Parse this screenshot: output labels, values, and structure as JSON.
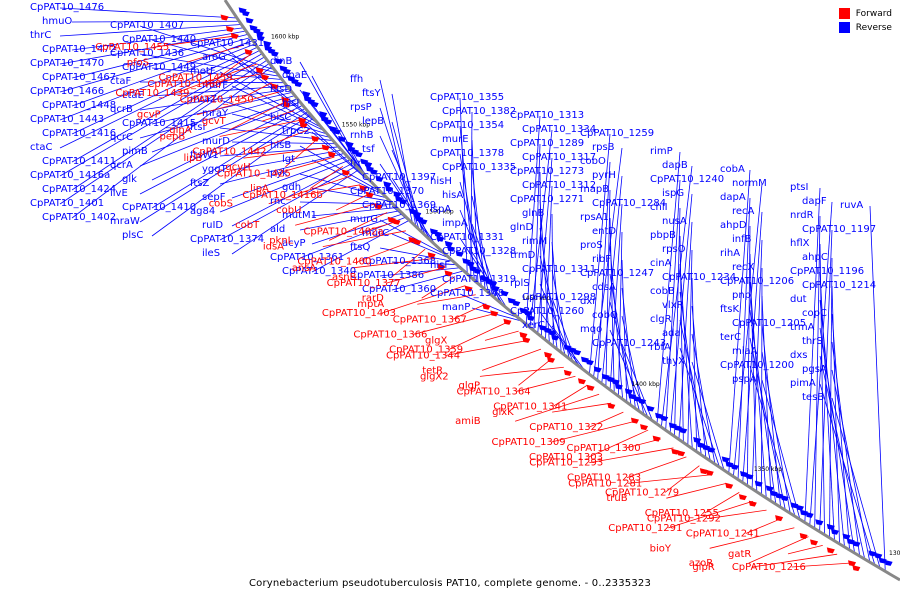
{
  "caption": "Corynebacterium pseudotuberculosis PAT10, complete genome. - 0..2335323",
  "legend": [
    {
      "label": "Forward",
      "color": "#ff0000"
    },
    {
      "label": "Reverse",
      "color": "#0000ff"
    }
  ],
  "colors": {
    "forward": "#ff0000",
    "reverse": "#0000ff",
    "backbone": "#888888"
  },
  "ticks": [
    "1600 kbp",
    "1550 kbp",
    "1500 kbp",
    "1450 kbp",
    "1400 kbp",
    "1350 kbp",
    "1300 kbp"
  ],
  "reverse_labels": [
    "CpPAT10_1476",
    "hmuO",
    "thrC",
    "CpPAT10_1472",
    "CpPAT10_1470",
    "CpPAT10_1467",
    "CpPAT10_1466",
    "CpPAT10_1448",
    "CpPAT10_1443",
    "CpPAT10_1416",
    "ctaC",
    "CpPAT10_1411",
    "CpPAT10_1416a",
    "CpPAT10_1424",
    "CpPAT10_1401",
    "CpPAT10_1402",
    "CpPAT10_1407",
    "CpPAT10_1440",
    "CpPAT10_1436",
    "CpPAT10_1449",
    "ctaF",
    "ctaE",
    "qcrB",
    "CpPAT10_1415",
    "qcrC",
    "pimB",
    "qcrA",
    "glk",
    "ilvE",
    "CpPAT10_1410",
    "mraW",
    "plsC",
    "CpPAT10_1431",
    "aroG",
    "metF",
    "murF",
    "mraZ",
    "mraY",
    "ftsI",
    "murD",
    "ftsW1",
    "yggT",
    "ftsZ",
    "sepF",
    "ag84",
    "ruID",
    "CpPAT10_1374",
    "ileS",
    "dinB",
    "dnaE",
    "hisD",
    "hisI",
    "hisC",
    "trpC2",
    "hisB",
    "lgt",
    "pyk",
    "gdh",
    "rnc",
    "mutM1",
    "ald",
    "acyP",
    "CpPAT10_1361",
    "CpPAT10_1340",
    "ffh",
    "ftsY",
    "rpsP",
    "lepB",
    "rnhB",
    "tsf",
    "frr",
    "CpPAT10_1397",
    "CpPAT10_1370",
    "CpPAT10_1369",
    "murG",
    "murC",
    "ftsQ",
    "CpPAT10_1368",
    "CpPAT10_1386",
    "CpPAT10_1360",
    "CpPAT10_1355",
    "CpPAT10_1382",
    "CpPAT10_1354",
    "murE",
    "CpPAT10_1378",
    "CpPAT10_1335",
    "hisH",
    "hisA",
    "lspA",
    "impA",
    "CpPAT10_1331",
    "CpPAT10_1328",
    "hisF",
    "CpPAT10_1319",
    "CpPAT10_1348",
    "manP",
    "CpPAT10_1313",
    "CpPAT10_1334",
    "CpPAT10_1289",
    "CpPAT10_1317",
    "CpPAT10_1273",
    "CpPAT10_1312",
    "CpPAT10_1271",
    "glnB",
    "glnD",
    "rimM",
    "trmD",
    "CpPAT10_1311",
    "rplS",
    "CpPAT10_1298",
    "CpPAT10_1260",
    "xerC",
    "CpPAT10_1259",
    "rpsB",
    "cobO",
    "pyrH",
    "mapB",
    "CpPAT10_1284",
    "rpsA1",
    "entD",
    "proS",
    "ribF",
    "CpPAT10_1247",
    "cdsA",
    "dxr",
    "cobQ",
    "mqo",
    "CpPAT10_1243",
    "rimP",
    "dapB",
    "CpPAT10_1240",
    "ispG",
    "chlI",
    "nusA",
    "pbpB",
    "rpsO",
    "cinA",
    "CpPAT10_1234",
    "cobB",
    "vlxR",
    "clgR",
    "ada",
    "rbfA",
    "thyX",
    "cobA",
    "normM",
    "dapA",
    "recA",
    "ahpD",
    "infB",
    "rihA",
    "recX",
    "CpPAT10_1206",
    "pnp",
    "ftsK",
    "CpPAT10_1205",
    "terC",
    "miaA",
    "CpPAT10_1200",
    "pspA",
    "ptsI",
    "dapF",
    "nrdR",
    "CpPAT10_1197",
    "hflX",
    "ahpC",
    "CpPAT10_1196",
    "CpPAT10_1214",
    "dut",
    "copC",
    "trmA",
    "thrS",
    "dxs",
    "pgsA",
    "pimA",
    "tesB",
    "ruvA"
  ],
  "forward_labels": [
    "CpPAT10_1455",
    "pfoS",
    "CpPAT10_1459",
    "CpPAT10_1439",
    "CpPAT10_1460",
    "CpPAT10_1450",
    "gcvP",
    "glnA",
    "gcvT",
    "pepB",
    "CpPAT10_1442",
    "gcvH",
    "lipB",
    "CpPAT10_1425",
    "lipA",
    "cobS",
    "CpPAT10_1416b",
    "cobU",
    "cobT",
    "pknL",
    "CpPAT10_1402a",
    "idsA",
    "CpPAT10_1400",
    "asnB",
    "ansA",
    "CpPAT10_1377",
    "rarD",
    "CpPAT10_1403",
    "mptA",
    "CpPAT10_1367",
    "CpPAT10_1366",
    "CpPAT10_1359",
    "glgX",
    "CpPAT10_1344",
    "tetR",
    "glgP",
    "glgX2",
    "CpPAT10_1364",
    "CpPAT10_1341",
    "amiB",
    "glxK",
    "CpPAT10_1322",
    "CpPAT10_1309",
    "CpPAT10_1303",
    "CpPAT10_1300",
    "CpPAT10_1293",
    "CpPAT10_1283",
    "CpPAT10_1279",
    "CpPAT10_1281",
    "truB",
    "CpPAT10_1255",
    "CpPAT10_1291",
    "CpPAT10_1292",
    "CpPAT10_1241",
    "bioY",
    "azoR",
    "gatR",
    "glpR",
    "CpPAT10_1216"
  ]
}
